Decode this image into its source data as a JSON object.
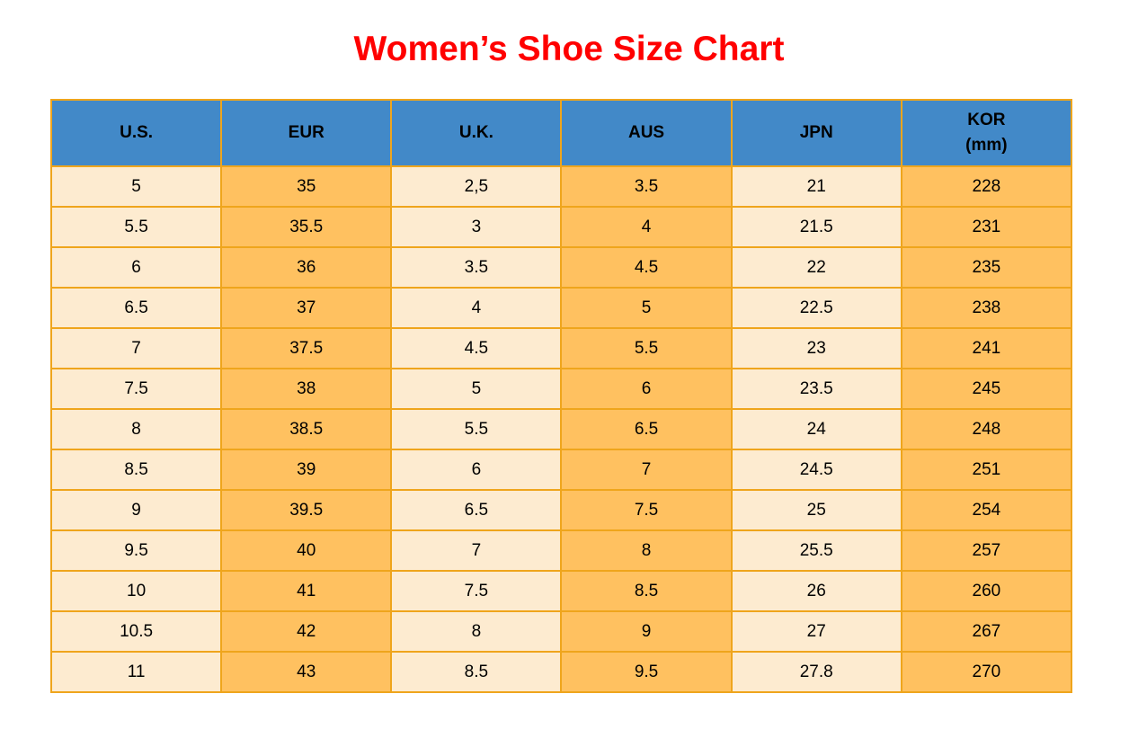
{
  "title": "Women’s Shoe Size Chart",
  "colors": {
    "title_red": "#ff0000",
    "header_blue": "#4289c8",
    "cell_cream": "#fdebd0",
    "cell_orange": "#ffc160",
    "border_orange": "#efa51c",
    "text_black": "#000000"
  },
  "table": {
    "headers": [
      "U.S.",
      "EUR",
      "U.K.",
      "AUS",
      "JPN",
      "KOR\n(mm)"
    ]
  },
  "chart_data": {
    "type": "table",
    "title": "Women’s Shoe Size Chart",
    "columns": [
      "U.S.",
      "EUR",
      "U.K.",
      "AUS",
      "JPN",
      "KOR (mm)"
    ],
    "rows": [
      [
        "5",
        "35",
        "2,5",
        "3.5",
        "21",
        "228"
      ],
      [
        "5.5",
        "35.5",
        "3",
        "4",
        "21.5",
        "231"
      ],
      [
        "6",
        "36",
        "3.5",
        "4.5",
        "22",
        "235"
      ],
      [
        "6.5",
        "37",
        "4",
        "5",
        "22.5",
        "238"
      ],
      [
        "7",
        "37.5",
        "4.5",
        "5.5",
        "23",
        "241"
      ],
      [
        "7.5",
        "38",
        "5",
        "6",
        "23.5",
        "245"
      ],
      [
        "8",
        "38.5",
        "5.5",
        "6.5",
        "24",
        "248"
      ],
      [
        "8.5",
        "39",
        "6",
        "7",
        "24.5",
        "251"
      ],
      [
        "9",
        "39.5",
        "6.5",
        "7.5",
        "25",
        "254"
      ],
      [
        "9.5",
        "40",
        "7",
        "8",
        "25.5",
        "257"
      ],
      [
        "10",
        "41",
        "7.5",
        "8.5",
        "26",
        "260"
      ],
      [
        "10.5",
        "42",
        "8",
        "9",
        "27",
        "267"
      ],
      [
        "11",
        "43",
        "8.5",
        "9.5",
        "27.8",
        "270"
      ]
    ],
    "layout": {
      "grid": true,
      "header_background": "#4289c8",
      "column_band_colors": [
        "#fdebd0",
        "#ffc160"
      ]
    }
  }
}
